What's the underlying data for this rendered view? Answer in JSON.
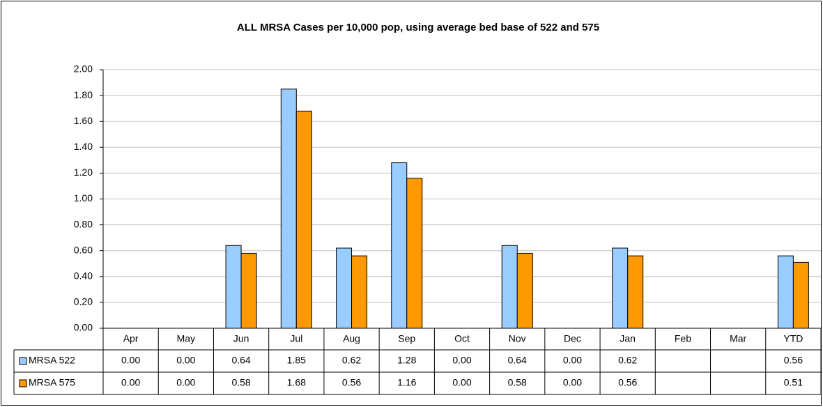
{
  "chart_data": {
    "type": "bar",
    "title": "ALL MRSA Cases per 10,000 pop, using average bed base of 522 and 575",
    "categories": [
      "Apr",
      "May",
      "Jun",
      "Jul",
      "Aug",
      "Sep",
      "Oct",
      "Nov",
      "Dec",
      "Jan",
      "Feb",
      "Mar",
      "YTD"
    ],
    "series": [
      {
        "name": "MRSA 522",
        "color": "#99ccff",
        "values": [
          0,
          0,
          0.64,
          1.85,
          0.62,
          1.28,
          0,
          0.64,
          0,
          0.62,
          null,
          null,
          0.56
        ],
        "value_labels": [
          "0.00",
          "0.00",
          "0.64",
          "1.85",
          "0.62",
          "1.28",
          "0.00",
          "0.64",
          "0.00",
          "0.62",
          null,
          null,
          "0.56"
        ]
      },
      {
        "name": "MRSA 575",
        "color": "#ff9900",
        "values": [
          0,
          0,
          0.58,
          1.68,
          0.56,
          1.16,
          0,
          0.58,
          0,
          0.56,
          null,
          null,
          0.51
        ],
        "value_labels": [
          "0.00",
          "0.00",
          "0.58",
          "1.68",
          "0.56",
          "1.16",
          "0.00",
          "0.58",
          "0.00",
          "0.56",
          null,
          null,
          "0.51"
        ]
      }
    ],
    "ylim": [
      0,
      2
    ],
    "yticks": [
      {
        "value": 0,
        "label": "0.00"
      },
      {
        "value": 0.2,
        "label": "0.20"
      },
      {
        "value": 0.4,
        "label": "0.40"
      },
      {
        "value": 0.6,
        "label": "0.60"
      },
      {
        "value": 0.8,
        "label": "0.80"
      },
      {
        "value": 1,
        "label": "1.00"
      },
      {
        "value": 1.2,
        "label": "1.20"
      },
      {
        "value": 1.4,
        "label": "1.40"
      },
      {
        "value": 1.6,
        "label": "1.60"
      },
      {
        "value": 1.8,
        "label": "1.80"
      },
      {
        "value": 2,
        "label": "2.00"
      }
    ],
    "grid": true
  }
}
